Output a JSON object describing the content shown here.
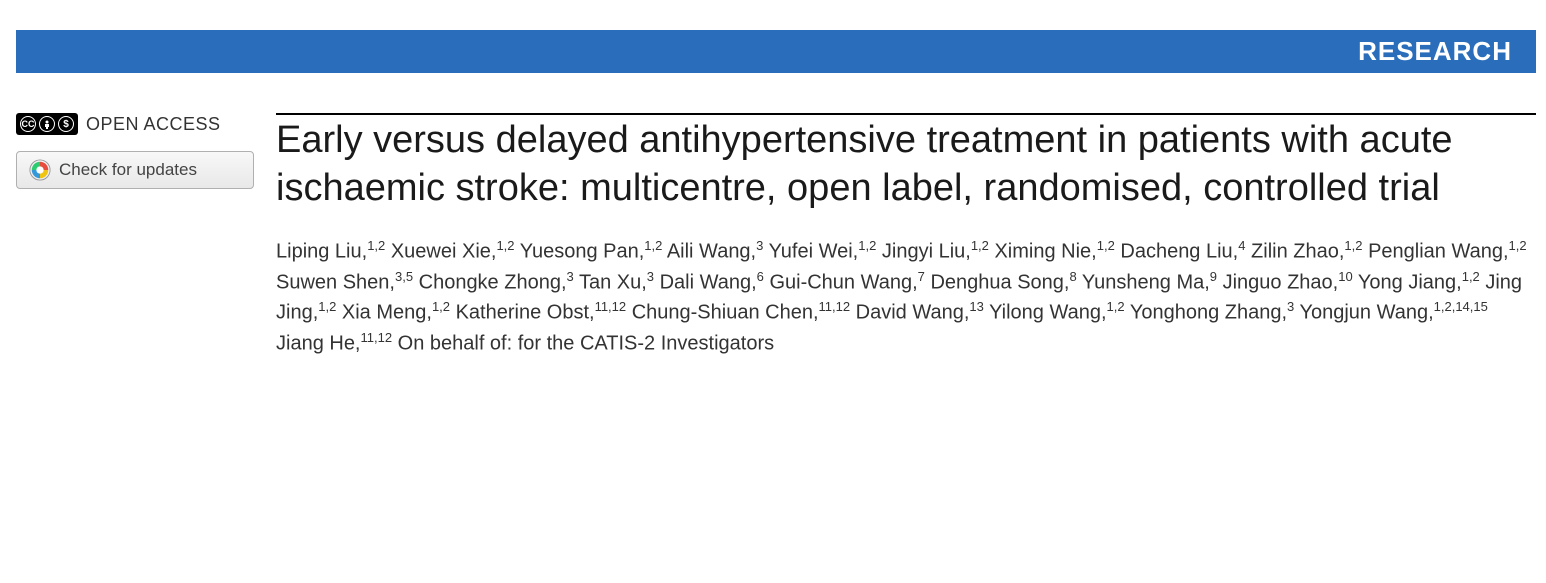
{
  "banner": {
    "label": "RESEARCH",
    "background_color": "#2a6ebb",
    "text_color": "#ffffff"
  },
  "sidebar": {
    "open_access_label": "OPEN ACCESS",
    "cc_license": {
      "main": "CC",
      "by": "BY",
      "nc": "NC"
    },
    "check_updates_label": "Check for updates"
  },
  "article": {
    "title": "Early versus delayed antihypertensive treatment in patients with acute ischaemic stroke: multicentre, open label, randomised, controlled trial",
    "authors": [
      {
        "name": "Liping Liu",
        "affiliations": "1,2"
      },
      {
        "name": "Xuewei Xie",
        "affiliations": "1,2"
      },
      {
        "name": "Yuesong Pan",
        "affiliations": "1,2"
      },
      {
        "name": "Aili Wang",
        "affiliations": "3"
      },
      {
        "name": "Yufei Wei",
        "affiliations": "1,2"
      },
      {
        "name": "Jingyi Liu",
        "affiliations": "1,2"
      },
      {
        "name": "Ximing Nie",
        "affiliations": "1,2"
      },
      {
        "name": "Dacheng Liu",
        "affiliations": "4"
      },
      {
        "name": "Zilin Zhao",
        "affiliations": "1,2"
      },
      {
        "name": "Penglian Wang",
        "affiliations": "1,2"
      },
      {
        "name": "Suwen Shen",
        "affiliations": "3,5"
      },
      {
        "name": "Chongke Zhong",
        "affiliations": "3"
      },
      {
        "name": "Tan Xu",
        "affiliations": "3"
      },
      {
        "name": "Dali Wang",
        "affiliations": "6"
      },
      {
        "name": "Gui-Chun Wang",
        "affiliations": "7"
      },
      {
        "name": "Denghua Song",
        "affiliations": "8"
      },
      {
        "name": "Yunsheng Ma",
        "affiliations": "9"
      },
      {
        "name": "Jinguo Zhao",
        "affiliations": "10"
      },
      {
        "name": "Yong Jiang",
        "affiliations": "1,2"
      },
      {
        "name": "Jing Jing",
        "affiliations": "1,2"
      },
      {
        "name": "Xia Meng",
        "affiliations": "1,2"
      },
      {
        "name": "Katherine Obst",
        "affiliations": "11,12"
      },
      {
        "name": "Chung-Shiuan Chen",
        "affiliations": "11,12"
      },
      {
        "name": "David Wang",
        "affiliations": "13"
      },
      {
        "name": "Yilong Wang",
        "affiliations": "1,2"
      },
      {
        "name": "Yonghong Zhang",
        "affiliations": "3"
      },
      {
        "name": "Yongjun Wang",
        "affiliations": "1,2,14,15"
      },
      {
        "name": "Jiang He",
        "affiliations": "11,12"
      }
    ],
    "on_behalf_text": "On behalf of: for the CATIS-2 Investigators"
  },
  "styling": {
    "title_fontsize": 38,
    "author_fontsize": 20,
    "banner_fontsize": 26,
    "background_color": "#ffffff",
    "title_color": "#1a1a1a",
    "border_color": "#000000"
  }
}
